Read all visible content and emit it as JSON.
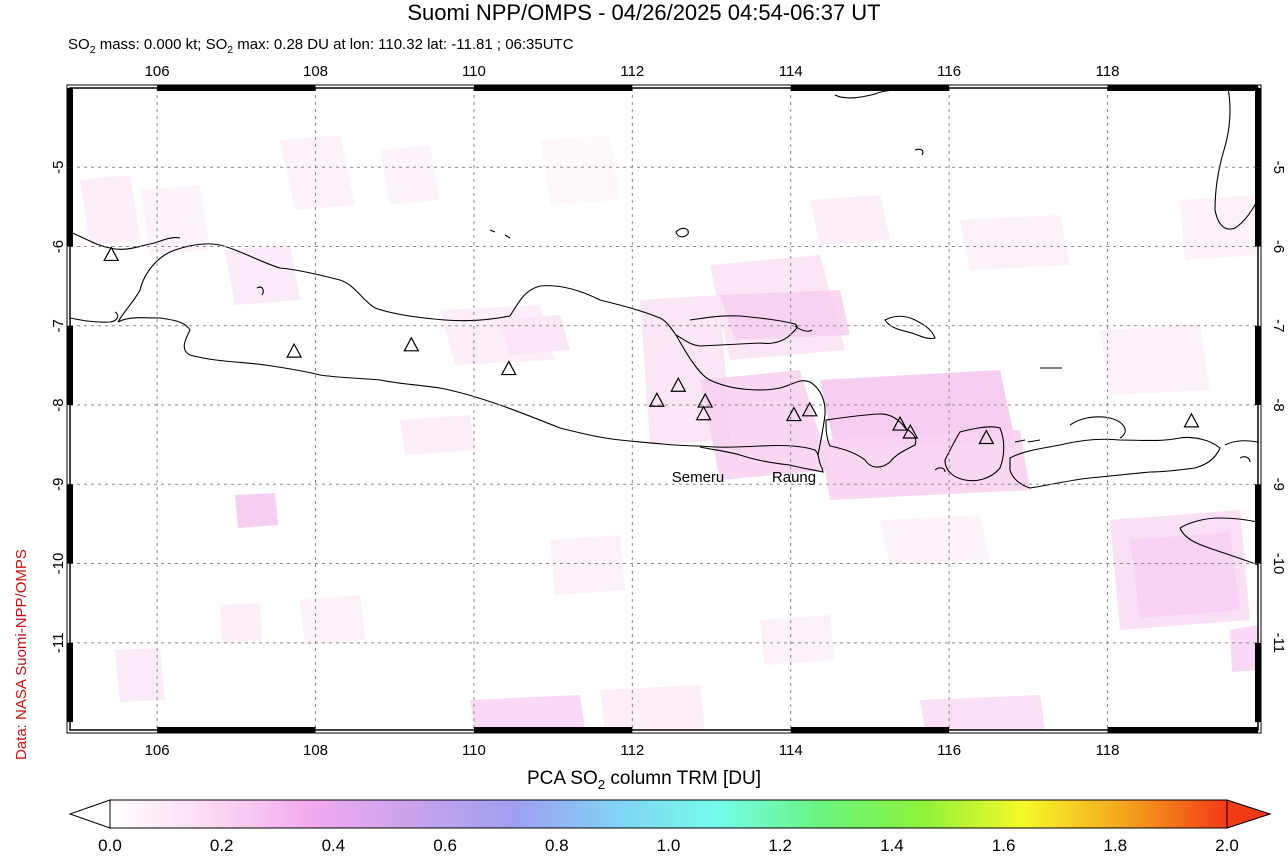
{
  "title": "Suomi NPP/OMPS - 04/26/2025 04:54-06:37 UT",
  "subtitle": {
    "part1": "SO",
    "sub1": "2",
    "part2": " mass: 0.000 kt; SO",
    "sub2": "2",
    "part3": " max: 0.28 DU at lon: 110.32 lat: -11.81 ; 06:35UTC"
  },
  "credit": "Data: NASA Suomi-NPP/OMPS",
  "map": {
    "lon_range": [
      104.9,
      119.9
    ],
    "lat_range": [
      -12.1,
      -4.0
    ],
    "lon_ticks": [
      "106",
      "108",
      "110",
      "112",
      "114",
      "116",
      "118"
    ],
    "lat_ticks": [
      "-5",
      "-6",
      "-7",
      "-8",
      "-9",
      "-10",
      "-11"
    ],
    "grid": "dotted",
    "volcano_labels": [
      "Semeru",
      "Raung"
    ],
    "volcanoes": [
      {
        "lon": 105.42,
        "lat": -6.1
      },
      {
        "lon": 107.73,
        "lat": -7.32
      },
      {
        "lon": 109.21,
        "lat": -7.24
      },
      {
        "lon": 110.44,
        "lat": -7.54
      },
      {
        "lon": 112.31,
        "lat": -7.94
      },
      {
        "lon": 112.58,
        "lat": -7.75
      },
      {
        "lon": 112.92,
        "lat": -7.95
      },
      {
        "lon": 112.9,
        "lat": -8.11
      },
      {
        "lon": 114.04,
        "lat": -8.12
      },
      {
        "lon": 114.24,
        "lat": -8.06
      },
      {
        "lon": 115.38,
        "lat": -8.24
      },
      {
        "lon": 115.51,
        "lat": -8.34
      },
      {
        "lon": 116.47,
        "lat": -8.41
      },
      {
        "lon": 119.06,
        "lat": -8.2
      }
    ],
    "land_color": "#000000",
    "so2_max_color": "#f6c9f1"
  },
  "colorbar": {
    "title_part1": "PCA SO",
    "title_sub": "2",
    "title_part2": " column TRM [DU]",
    "ticks": [
      "0.0",
      "0.2",
      "0.4",
      "0.6",
      "0.8",
      "1.0",
      "1.2",
      "1.4",
      "1.6",
      "1.8",
      "2.0"
    ],
    "colors": [
      "#ffffff",
      "#fbd9f2",
      "#f2a9f0",
      "#c8a3ec",
      "#9f9ff3",
      "#82d3f4",
      "#74fcea",
      "#6af47f",
      "#8df23b",
      "#f7f82a",
      "#f4a41d",
      "#f23a17"
    ]
  }
}
